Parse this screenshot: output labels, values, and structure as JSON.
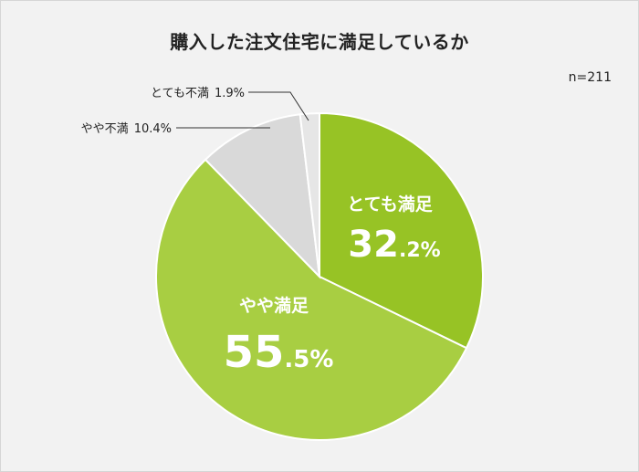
{
  "title": "購入した注文住宅に満足しているか",
  "sample_size": "n=211",
  "chart_data": {
    "type": "pie",
    "title": "購入した注文住宅に満足しているか",
    "start": "12 o'clock, clockwise",
    "slices": [
      {
        "label": "とても満足",
        "value": 32.2,
        "color": "#97c325",
        "label_text": {
          "int": "32",
          "dec": ".2%"
        }
      },
      {
        "label": "やや満足",
        "value": 55.5,
        "color": "#a8ce42",
        "label_text": {
          "int": "55",
          "dec": ".5%"
        }
      },
      {
        "label": "やや不満",
        "value": 10.4,
        "color": "#d9d9d9",
        "label_text": "10.4%"
      },
      {
        "label": "とても不満",
        "value": 1.9,
        "color": "#e6e6e6",
        "label_text": "1.9%"
      }
    ]
  }
}
